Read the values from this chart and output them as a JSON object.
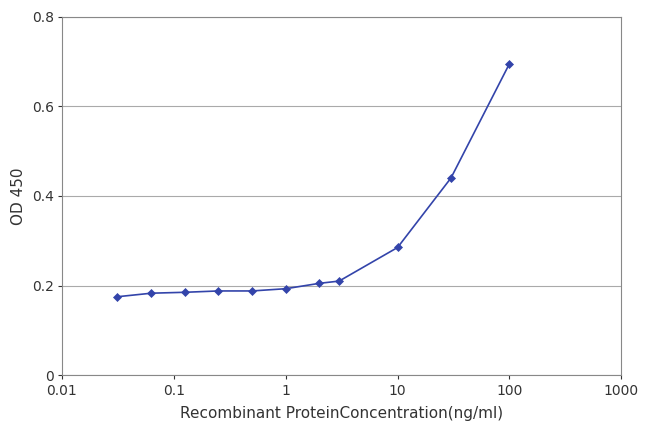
{
  "x_values": [
    0.031,
    0.063,
    0.125,
    0.25,
    0.5,
    1.0,
    2.0,
    3.0,
    10.0,
    30.0,
    100.0
  ],
  "y_values": [
    0.175,
    0.183,
    0.185,
    0.188,
    0.188,
    0.193,
    0.205,
    0.21,
    0.285,
    0.44,
    0.695
  ],
  "line_color": "#3344aa",
  "marker_color": "#3344aa",
  "marker_style": "D",
  "marker_size": 4,
  "line_width": 1.2,
  "xlabel": "Recombinant ProteinConcentration(ng/ml)",
  "ylabel": "OD 450",
  "xlim_log": [
    0.01,
    1000
  ],
  "ylim": [
    0,
    0.8
  ],
  "yticks": [
    0,
    0.2,
    0.4,
    0.6,
    0.8
  ],
  "ytick_labels": [
    "0",
    "0.2",
    "0.4",
    "0.6",
    "0.8"
  ],
  "xtick_positions": [
    0.01,
    0.1,
    1,
    10,
    100,
    1000
  ],
  "xtick_labels": [
    "0.01",
    "0.1",
    "1",
    "10",
    "100",
    "1000"
  ],
  "plot_bg_color": "#ffffff",
  "fig_bg_color": "#ffffff",
  "grid_color": "#aaaaaa",
  "spine_color": "#888888",
  "axis_fontsize": 11,
  "tick_fontsize": 10,
  "xlabel_fontsize": 11
}
